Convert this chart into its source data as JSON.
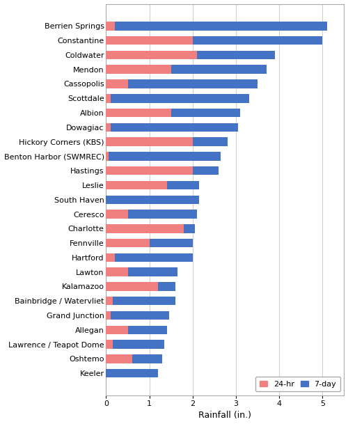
{
  "categories": [
    "Berrien Springs",
    "Constantine",
    "Coldwater",
    "Mendon",
    "Cassopolis",
    "Scottdale",
    "Albion",
    "Dowagiac",
    "Hickory Corners (KBS)",
    "Benton Harbor (SWMREC)",
    "Hastings",
    "Leslie",
    "South Haven",
    "Ceresco",
    "Charlotte",
    "Fennville",
    "Hartford",
    "Lawton",
    "Kalamazoo",
    "Bainbridge / Watervliet",
    "Grand Junction",
    "Allegan",
    "Lawrence / Teapot Dome",
    "Oshtemo",
    "Keeler"
  ],
  "val_24hr": [
    0.2,
    2.0,
    2.1,
    1.5,
    0.5,
    0.1,
    1.5,
    0.1,
    2.0,
    0.05,
    2.0,
    1.4,
    0.0,
    0.5,
    1.8,
    1.0,
    0.2,
    0.5,
    1.2,
    0.15,
    0.1,
    0.5,
    0.15,
    0.6,
    0.0
  ],
  "val_7day": [
    5.1,
    5.0,
    3.9,
    3.7,
    3.5,
    3.3,
    3.1,
    3.05,
    2.8,
    2.65,
    2.6,
    2.15,
    2.15,
    2.1,
    2.05,
    2.0,
    2.0,
    1.65,
    1.6,
    1.6,
    1.45,
    1.4,
    1.35,
    1.3,
    1.2
  ],
  "color_24hr": "#F08080",
  "color_7day": "#4472C4",
  "xlabel": "Rainfall (in.)",
  "xlim": [
    0,
    5.5
  ],
  "xticks": [
    0,
    1,
    2,
    3,
    4,
    5
  ],
  "legend_labels": [
    "24-hr",
    "7-day"
  ],
  "background_color": "#FFFFFF",
  "grid_color": "#D0D0D0",
  "bar_height": 0.6,
  "fontsize_labels": 8,
  "fontsize_ticks": 8,
  "fontsize_xlabel": 9,
  "fontsize_legend": 8
}
